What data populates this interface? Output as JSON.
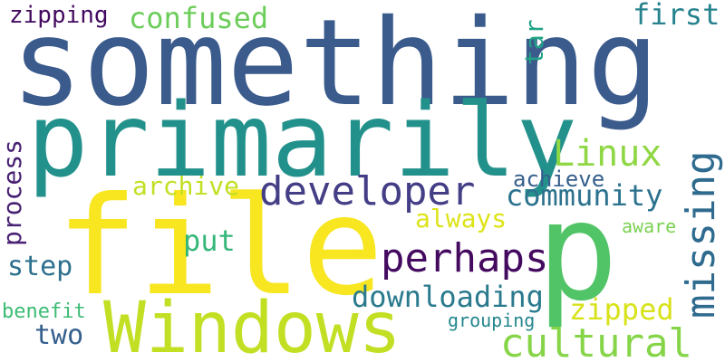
{
  "words": [
    {
      "text": "something",
      "color": "#3b5b8c"
    },
    {
      "text": "primarily",
      "color": "#23918b"
    },
    {
      "text": "file",
      "color": "#f7e620"
    },
    {
      "text": "p",
      "color": "#52c468"
    },
    {
      "text": "Windows",
      "color": "#c2df23"
    },
    {
      "text": "developer",
      "color": "#433e85"
    },
    {
      "text": "perhaps",
      "color": "#440a60"
    },
    {
      "text": "cultural",
      "color": "#86d549"
    },
    {
      "text": "missing",
      "color": "#2f6b8e"
    },
    {
      "text": "downloading",
      "color": "#2a7a8e"
    },
    {
      "text": "Linux",
      "color": "#8fd744"
    },
    {
      "text": "community",
      "color": "#2c728e"
    },
    {
      "text": "confused",
      "color": "#6ccd5a"
    },
    {
      "text": "zipping",
      "color": "#440a60"
    },
    {
      "text": "first",
      "color": "#26838e"
    },
    {
      "text": "tar",
      "color": "#20a386"
    },
    {
      "text": "archive",
      "color": "#c2df23"
    },
    {
      "text": "achieve",
      "color": "#355f8d"
    },
    {
      "text": "always",
      "color": "#dde318"
    },
    {
      "text": "process",
      "color": "#482173"
    },
    {
      "text": "put",
      "color": "#35b779"
    },
    {
      "text": "step",
      "color": "#2d708e"
    },
    {
      "text": "zipped",
      "color": "#d8e219"
    },
    {
      "text": "aware",
      "color": "#7ad151"
    },
    {
      "text": "benefit",
      "color": "#3dbc74"
    },
    {
      "text": "two",
      "color": "#355f8d"
    },
    {
      "text": "grouping",
      "color": "#24868e"
    }
  ]
}
